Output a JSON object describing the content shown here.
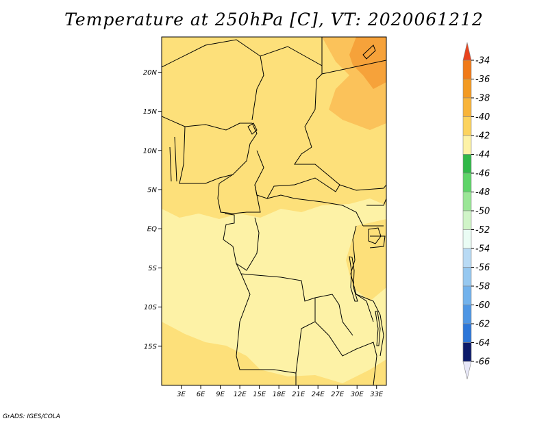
{
  "title": "Temperature at 250hPa [C], VT: 2020061212",
  "credit": "GrADS: IGES/COLA",
  "map": {
    "lat_range": [
      -20,
      24.5
    ],
    "lon_range": [
      0,
      34.5
    ],
    "lat_ticks": [
      {
        "value": 20,
        "label": "20N"
      },
      {
        "value": 15,
        "label": "15N"
      },
      {
        "value": 10,
        "label": "10N"
      },
      {
        "value": 5,
        "label": "5N"
      },
      {
        "value": 0,
        "label": "EQ"
      },
      {
        "value": -5,
        "label": "5S"
      },
      {
        "value": -10,
        "label": "10S"
      },
      {
        "value": -15,
        "label": "15S"
      }
    ],
    "lon_ticks": [
      {
        "value": 3,
        "label": "3E"
      },
      {
        "value": 6,
        "label": "6E"
      },
      {
        "value": 9,
        "label": "9E"
      },
      {
        "value": 12,
        "label": "12E"
      },
      {
        "value": 15,
        "label": "15E"
      },
      {
        "value": 18,
        "label": "18E"
      },
      {
        "value": 21,
        "label": "21E"
      },
      {
        "value": 24,
        "label": "24E"
      },
      {
        "value": 27,
        "label": "27E"
      },
      {
        "value": 30,
        "label": "30E"
      },
      {
        "value": 33,
        "label": "33E"
      }
    ],
    "fill_colors": {
      "base": "#fdf2a6",
      "warm": "#fde07a",
      "warmer": "#fbc25a",
      "hot": "#f6a23a"
    }
  },
  "colorbar": {
    "top_arrow_color": "#e8431e",
    "bottom_arrow_color": "#e8e8f8",
    "levels": [
      {
        "label": "-34",
        "color": "#f07a18"
      },
      {
        "label": "-36",
        "color": "#f39a22"
      },
      {
        "label": "-38",
        "color": "#f8b43a"
      },
      {
        "label": "-40",
        "color": "#fcd35e"
      },
      {
        "label": "-42",
        "color": "#fdf2a6"
      },
      {
        "label": "-44",
        "color": "#30b848"
      },
      {
        "label": "-46",
        "color": "#5ed468"
      },
      {
        "label": "-48",
        "color": "#9ae696"
      },
      {
        "label": "-50",
        "color": "#d0f4c8"
      },
      {
        "label": "-52",
        "color": "#eafcf4"
      },
      {
        "label": "-54",
        "color": "#b8daf4"
      },
      {
        "label": "-56",
        "color": "#96c8f0"
      },
      {
        "label": "-58",
        "color": "#72b2ec"
      },
      {
        "label": "-60",
        "color": "#4e96e4"
      },
      {
        "label": "-62",
        "color": "#2c76d8"
      },
      {
        "label": "-64",
        "color": "#1452b0"
      },
      {
        "label": "-66",
        "color": "#0c1a6a"
      }
    ]
  }
}
